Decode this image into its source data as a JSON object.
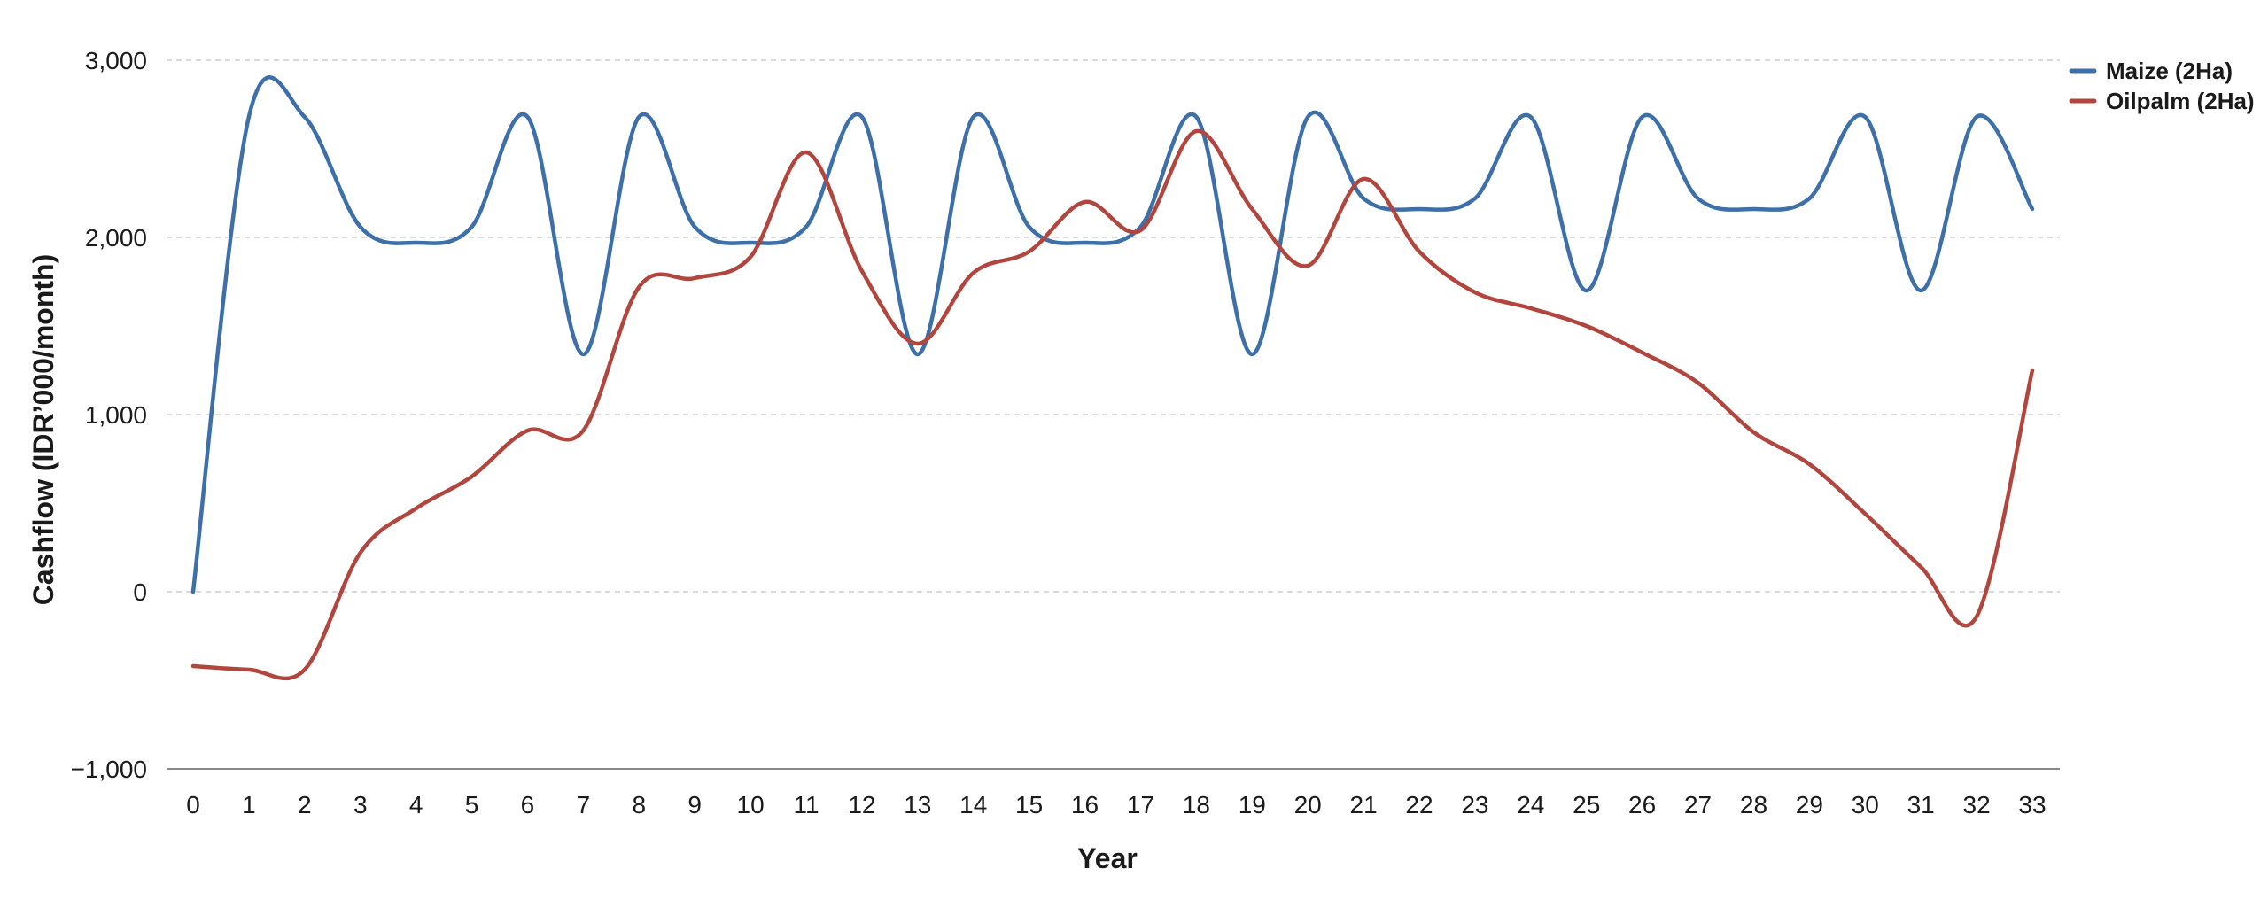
{
  "chart_data": {
    "type": "line",
    "title": "",
    "xlabel": "Year",
    "ylabel": "Cashflow (IDR’000/month)",
    "xlim": [
      0,
      33
    ],
    "ylim": [
      -1000,
      3000
    ],
    "x": [
      0,
      1,
      2,
      3,
      4,
      5,
      6,
      7,
      8,
      9,
      10,
      11,
      12,
      13,
      14,
      15,
      16,
      17,
      18,
      19,
      20,
      21,
      22,
      23,
      24,
      25,
      26,
      27,
      28,
      29,
      30,
      31,
      32,
      33
    ],
    "y_ticks": [
      -1000,
      0,
      1000,
      2000,
      3000
    ],
    "y_tick_labels": [
      "−1,000",
      "0",
      "1,000",
      "2,000",
      "3,000"
    ],
    "x_tick_labels": [
      "0",
      "1",
      "2",
      "3",
      "4",
      "5",
      "6",
      "7",
      "8",
      "9",
      "10",
      "11",
      "12",
      "13",
      "14",
      "15",
      "16",
      "17",
      "18",
      "19",
      "20",
      "21",
      "22",
      "23",
      "24",
      "25",
      "26",
      "27",
      "28",
      "29",
      "30",
      "31",
      "32",
      "33"
    ],
    "grid": true,
    "legend_position": "top-right",
    "series": [
      {
        "name": "Maize (2Ha)",
        "color": "#3d6fa8",
        "values": [
          0,
          2680,
          2680,
          2060,
          1970,
          2060,
          2680,
          1340,
          2680,
          2060,
          1970,
          2060,
          2680,
          1340,
          2680,
          2060,
          1970,
          2060,
          2680,
          1340,
          2680,
          2220,
          2160,
          2220,
          2680,
          1700,
          2680,
          2220,
          2160,
          2220,
          2680,
          1700,
          2680,
          2160
        ]
      },
      {
        "name": "Oilpalm (2Ha)",
        "color": "#b0463e",
        "values": [
          -420,
          -440,
          -440,
          220,
          470,
          650,
          910,
          910,
          1720,
          1770,
          1890,
          2480,
          1810,
          1400,
          1800,
          1920,
          2200,
          2040,
          2600,
          2160,
          1840,
          2330,
          1920,
          1690,
          1600,
          1500,
          1350,
          1180,
          900,
          720,
          440,
          140,
          -140,
          1250
        ]
      }
    ]
  }
}
